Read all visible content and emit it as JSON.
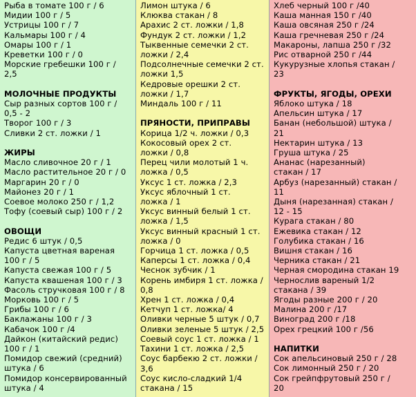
{
  "columns": [
    {
      "color": "#cff6cf",
      "lines": [
        {
          "t": "Рыба в томате 100 г / 6"
        },
        {
          "t": "Мидии 100 г / 5"
        },
        {
          "t": "Устрицы 100 г / 7"
        },
        {
          "t": "Кальмары 100 г / 4"
        },
        {
          "t": "Омары 100 г / 1"
        },
        {
          "t": "Креветки 100 г / 0"
        },
        {
          "t": "Морские гребешки 100 г /"
        },
        {
          "t": "2,5"
        },
        {
          "t": ""
        },
        {
          "t": "МОЛОЧНЫЕ ПРОДУКТЫ",
          "h": true
        },
        {
          "t": "Сыр разных сортов 100 г /"
        },
        {
          "t": "0,5 - 2"
        },
        {
          "t": "Творог 100 г / 3"
        },
        {
          "t": "Сливки 2 ст. ложки / 1"
        },
        {
          "t": ""
        },
        {
          "t": "ЖИРЫ",
          "h": true
        },
        {
          "t": "Масло сливочное 20 г / 1"
        },
        {
          "t": "Масло растительное 20 г / 0"
        },
        {
          "t": "Маргарин 20 г / 0"
        },
        {
          "t": "Майонез 20 г / 1"
        },
        {
          "t": "Соевое молоко 250 г / 1,2"
        },
        {
          "t": "Тофу (соевый сыр) 100 г / 2"
        },
        {
          "t": ""
        },
        {
          "t": "ОВОЩИ",
          "h": true
        },
        {
          "t": "Редис 6 штук / 0,5"
        },
        {
          "t": "Капуста цветная вареная"
        },
        {
          "t": "100 г / 5"
        },
        {
          "t": "Капуста свежая 100 г / 5"
        },
        {
          "t": "Капуста квашеная 100 г / 3"
        },
        {
          "t": "Фасоль стручковая 100 г / 8"
        },
        {
          "t": "Морковь 100 г / 5"
        },
        {
          "t": "Грибы 100 г / 6"
        },
        {
          "t": "Баклажаны 100 г / 3"
        },
        {
          "t": "Кабачок 100 г /4"
        },
        {
          "t": "Дайкон (китайский редис)"
        },
        {
          "t": "100 г / 1"
        },
        {
          "t": "Помидор свежий (средний)"
        },
        {
          "t": "штука / 6"
        },
        {
          "t": "Помидор консервированный"
        },
        {
          "t": "штука / 4"
        }
      ]
    },
    {
      "color": "#f7f7a8",
      "lines": [
        {
          "t": "Лимон штука / 6"
        },
        {
          "t": "Клюква стакан / 8"
        },
        {
          "t": "Арахис 2 ст. ложки / 1,8"
        },
        {
          "t": "Фундук 2 ст. ложки / 1,2"
        },
        {
          "t": "Тыквенные семечки 2 ст."
        },
        {
          "t": "ложки / 2,4"
        },
        {
          "t": "Подсолнечные семечки 2 ст."
        },
        {
          "t": "ложки 1,5"
        },
        {
          "t": "Кедровые орешки 2 ст."
        },
        {
          "t": "ложки / 1,7"
        },
        {
          "t": "Миндаль 100 г / 11"
        },
        {
          "t": ""
        },
        {
          "t": "ПРЯНОСТИ, ПРИПРАВЫ",
          "h": true
        },
        {
          "t": "Корица 1/2 ч. ложки / 0,3"
        },
        {
          "t": "Кокосовый орех 2 ст."
        },
        {
          "t": "ложки / 0,8"
        },
        {
          "t": "Перец чили молотый 1 ч."
        },
        {
          "t": "ложка / 0,5"
        },
        {
          "t": "Уксус 1 ст. ложка / 2,3"
        },
        {
          "t": "Уксус яблочный 1 ст."
        },
        {
          "t": "ложка / 1"
        },
        {
          "t": "Уксус винный белый 1 ст."
        },
        {
          "t": "ложка / 1,5"
        },
        {
          "t": "Уксус винный красный 1 ст."
        },
        {
          "t": "ложка / 0"
        },
        {
          "t": "Горчица 1 ст. ложка / 0,5"
        },
        {
          "t": "Каперсы 1 ст. ложка / 0,4"
        },
        {
          "t": "Чеснок зубчик / 1"
        },
        {
          "t": "Корень имбиря 1 ст. ложка /"
        },
        {
          "t": "0,8"
        },
        {
          "t": "Хрен 1 ст. ложка / 0,4"
        },
        {
          "t": "Кетчуп 1 ст. ложка/ 4"
        },
        {
          "t": "Оливки черные 5 штук / 0,7"
        },
        {
          "t": "Оливки зеленые 5 штук / 2,5"
        },
        {
          "t": "Соевый соус 1 ст. ложка / 1"
        },
        {
          "t": "Тахини 1 ст. ложка / 2,5"
        },
        {
          "t": "Соус барбекю 2 ст. ложки /"
        },
        {
          "t": "3,6"
        },
        {
          "t": "Соус кисло-сладкий 1/4"
        },
        {
          "t": "стакана / 15"
        }
      ]
    },
    {
      "color": "#f7b7b7",
      "lines": [
        {
          "t": "Хлеб черный 100 г /40"
        },
        {
          "t": "Каша манная 150 г /40"
        },
        {
          "t": "Каша овсяная 250 г /24"
        },
        {
          "t": "Каша гречневая 250 г /24"
        },
        {
          "t": "Макароны, лапша 250 г /32"
        },
        {
          "t": "Рис отварной 250 г /44"
        },
        {
          "t": "Кукурузные хлопья стакан /"
        },
        {
          "t": "23"
        },
        {
          "t": ""
        },
        {
          "t": "ФРУКТЫ, ЯГОДЫ, ОРЕХИ",
          "h": true
        },
        {
          "t": "Яблоко штука / 18"
        },
        {
          "t": "Апельсин штука / 17"
        },
        {
          "t": "Банан (небольшой) штука /"
        },
        {
          "t": "21"
        },
        {
          "t": "Нектарин штука / 13"
        },
        {
          "t": "Груша штука / 25"
        },
        {
          "t": "Ананас (нарезанный)"
        },
        {
          "t": "стакан / 17"
        },
        {
          "t": "Арбуз (нарезанный) стакан /"
        },
        {
          "t": "11"
        },
        {
          "t": "Дыня (нарезанная) стакан /"
        },
        {
          "t": "12 - 15"
        },
        {
          "t": "Курага стакан / 80"
        },
        {
          "t": "Ежевика стакан / 12"
        },
        {
          "t": "Голубика стакан / 16"
        },
        {
          "t": "Вишня стакан / 16"
        },
        {
          "t": "Черника стакан / 21"
        },
        {
          "t": "Черная смородина стакан 19"
        },
        {
          "t": "Чернослив вареный 1/2"
        },
        {
          "t": "стакана / 39"
        },
        {
          "t": "Ягоды разные 200 г / 20"
        },
        {
          "t": "Малина 200 г /17"
        },
        {
          "t": "Виноград 200 г /18"
        },
        {
          "t": "Орех грецкий 100 г /56"
        },
        {
          "t": ""
        },
        {
          "t": "НАПИТКИ",
          "h": true
        },
        {
          "t": "Сок апельсиновый 250 г / 28"
        },
        {
          "t": "Сок лимонный 250 г / 20"
        },
        {
          "t": "Сок грейпфрутовый 250 г /"
        },
        {
          "t": "20"
        }
      ]
    }
  ]
}
